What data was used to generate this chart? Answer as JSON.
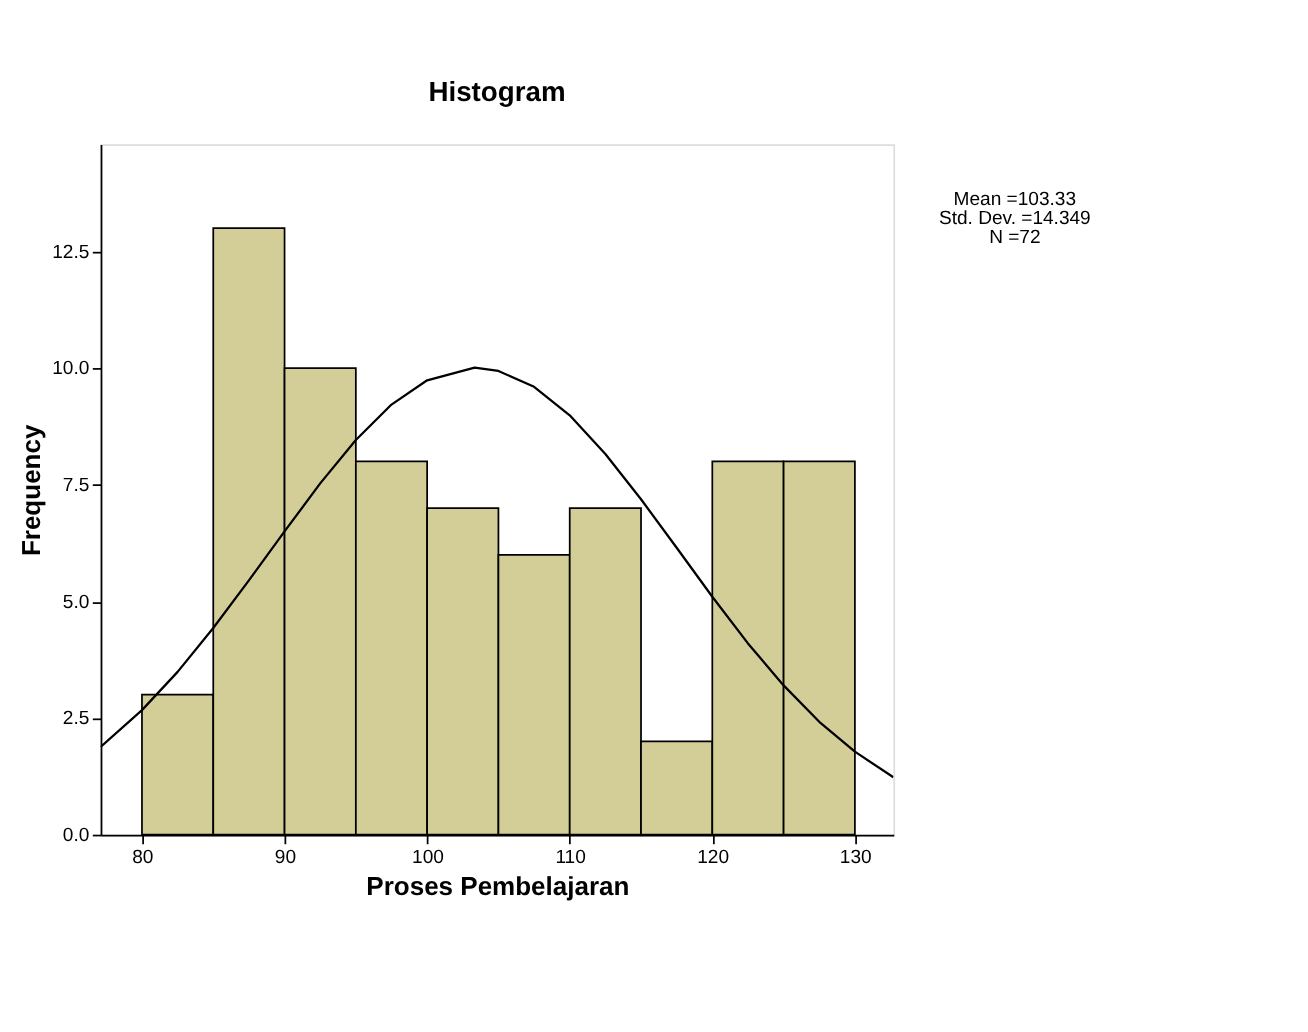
{
  "chart_data": {
    "type": "histogram",
    "title": "Histogram",
    "xlabel": "Proses Pembelajaran",
    "ylabel": "Frequency",
    "bins": [
      80,
      85,
      90,
      95,
      100,
      105,
      110,
      115,
      120,
      125,
      130
    ],
    "values": [
      3,
      13,
      10,
      8,
      7,
      6,
      7,
      2,
      8,
      8
    ],
    "color": "#d3ce97",
    "series": [
      {
        "type": "line",
        "color": "#000000",
        "x": [
          77.1,
          80,
          82.5,
          85,
          87.5,
          90,
          92.5,
          95,
          97.5,
          100,
          103.33,
          105,
          107.5,
          110,
          112.5,
          115,
          117.5,
          120,
          122.5,
          125,
          127.5,
          130,
          132.7
        ],
        "values": [
          1.88,
          2.67,
          3.49,
          4.43,
          5.45,
          6.5,
          7.53,
          8.46,
          9.22,
          9.74,
          10.01,
          9.94,
          9.6,
          8.99,
          8.16,
          7.19,
          6.15,
          5.1,
          4.1,
          3.2,
          2.42,
          1.78,
          1.23
        ]
      }
    ],
    "xlim": [
      77.1,
      132.7
    ],
    "xticks": [
      80,
      90,
      100,
      110,
      120,
      130
    ],
    "ylim": [
      0,
      14.8
    ],
    "yticks": [
      {
        "value": 0,
        "label": "0.0"
      },
      {
        "value": 2.5,
        "label": "2.5"
      },
      {
        "value": 5,
        "label": "5.0"
      },
      {
        "value": 7.5,
        "label": "7.5"
      },
      {
        "value": 10,
        "label": "10.0"
      },
      {
        "value": 12.5,
        "label": "12.5"
      }
    ],
    "grid": false,
    "annotations": [
      "Mean =103.33",
      "Std. Dev. =14.349",
      "N =72"
    ]
  }
}
